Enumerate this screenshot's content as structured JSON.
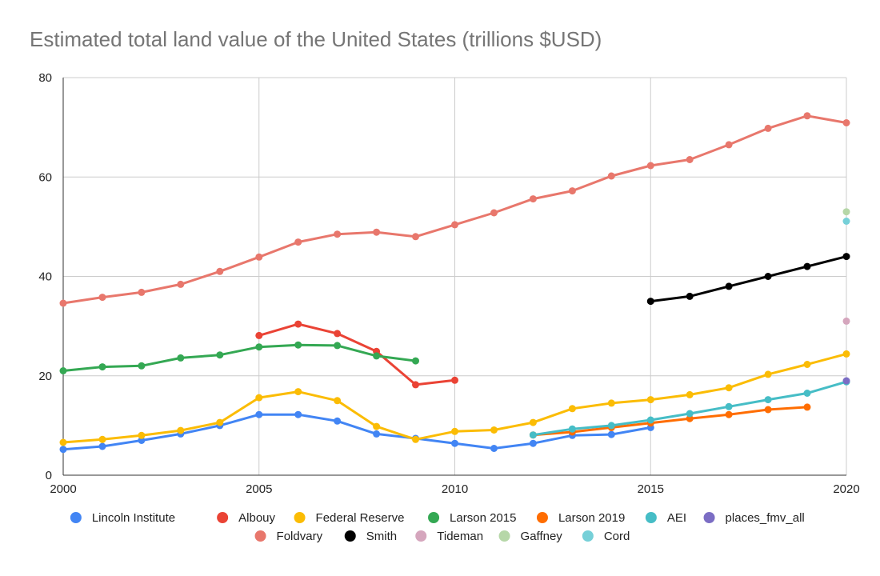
{
  "chart_data": {
    "type": "line",
    "title": "Estimated total land value of the United States (trillions $USD)",
    "xlabel": "",
    "ylabel": "",
    "xlim": [
      2000,
      2020
    ],
    "ylim": [
      0,
      80
    ],
    "x_ticks": [
      "2000",
      "2005",
      "2010",
      "2015",
      "2020"
    ],
    "y_ticks": [
      "0",
      "20",
      "40",
      "60",
      "80"
    ],
    "grid": true,
    "legend_position": "bottom",
    "series": [
      {
        "name": "Lincoln Institute",
        "color": "#4285f4",
        "line": true,
        "x": [
          2000,
          2001,
          2002,
          2003,
          2004,
          2005,
          2006,
          2007,
          2008,
          2009,
          2010,
          2011,
          2012,
          2013,
          2014,
          2015
        ],
        "y": [
          5.2,
          5.8,
          7.0,
          8.3,
          10.0,
          12.2,
          12.2,
          10.9,
          8.3,
          7.4,
          6.4,
          5.4,
          6.4,
          8.0,
          8.2,
          9.6
        ]
      },
      {
        "name": "Albouy",
        "color": "#ea4335",
        "line": true,
        "x": [
          2005,
          2006,
          2007,
          2008,
          2009,
          2010
        ],
        "y": [
          28.1,
          30.4,
          28.5,
          24.9,
          18.2,
          19.1
        ]
      },
      {
        "name": "Federal Reserve",
        "color": "#fbbc04",
        "line": true,
        "x": [
          2000,
          2001,
          2002,
          2003,
          2004,
          2005,
          2006,
          2007,
          2008,
          2009,
          2010,
          2011,
          2012,
          2013,
          2014,
          2015,
          2016,
          2017,
          2018,
          2019,
          2020
        ],
        "y": [
          6.6,
          7.2,
          8.0,
          9.0,
          10.6,
          15.6,
          16.8,
          15.0,
          9.8,
          7.2,
          8.8,
          9.1,
          10.6,
          13.4,
          14.5,
          15.2,
          16.2,
          17.6,
          20.3,
          22.3,
          24.4
        ]
      },
      {
        "name": "Larson 2015",
        "color": "#34a853",
        "line": true,
        "x": [
          2000,
          2001,
          2002,
          2003,
          2004,
          2005,
          2006,
          2007,
          2008,
          2009
        ],
        "y": [
          21.0,
          21.8,
          22.0,
          23.6,
          24.2,
          25.8,
          26.2,
          26.1,
          24.0,
          23.0
        ]
      },
      {
        "name": "Larson 2019",
        "color": "#ff6d01",
        "line": true,
        "x": [
          2012,
          2013,
          2014,
          2015,
          2016,
          2017,
          2018,
          2019
        ],
        "y": [
          8.1,
          8.7,
          9.6,
          10.5,
          11.4,
          12.2,
          13.2,
          13.7
        ]
      },
      {
        "name": "AEI",
        "color": "#46bdc6",
        "line": true,
        "x": [
          2012,
          2013,
          2014,
          2015,
          2016,
          2017,
          2018,
          2019,
          2020
        ],
        "y": [
          8.1,
          9.3,
          10.0,
          11.1,
          12.4,
          13.8,
          15.2,
          16.5,
          18.8
        ]
      },
      {
        "name": "places_fmv_all",
        "color": "#7b6dc4",
        "line": false,
        "x": [
          2020
        ],
        "y": [
          19.0
        ]
      },
      {
        "name": "Foldvary",
        "color": "#e8776c",
        "line": true,
        "x": [
          2000,
          2001,
          2002,
          2003,
          2004,
          2005,
          2006,
          2007,
          2008,
          2009,
          2010,
          2011,
          2012,
          2013,
          2014,
          2015,
          2016,
          2017,
          2018,
          2019,
          2020
        ],
        "y": [
          34.6,
          35.8,
          36.8,
          38.4,
          41.0,
          43.9,
          46.9,
          48.5,
          48.9,
          48.0,
          50.4,
          52.8,
          55.6,
          57.2,
          60.2,
          62.3,
          63.5,
          66.5,
          69.8,
          72.3,
          70.9
        ]
      },
      {
        "name": "Smith",
        "color": "#000000",
        "line": true,
        "x": [
          2015,
          2016,
          2017,
          2018,
          2019,
          2020
        ],
        "y": [
          35.0,
          36.0,
          38.0,
          40.0,
          42.0,
          44.0
        ]
      },
      {
        "name": "Tideman",
        "color": "#d5a6bd",
        "line": false,
        "x": [
          2020
        ],
        "y": [
          31.0
        ]
      },
      {
        "name": "Gaffney",
        "color": "#b6d7a8",
        "line": false,
        "x": [
          2020
        ],
        "y": [
          53.0
        ]
      },
      {
        "name": "Cord",
        "color": "#76d0d8",
        "line": false,
        "x": [
          2020
        ],
        "y": [
          51.1
        ]
      }
    ],
    "legend_rows": [
      [
        "Lincoln Institute",
        "Albouy",
        "Federal Reserve",
        "Larson 2015",
        "Larson 2019",
        "AEI",
        "places_fmv_all"
      ],
      [
        "Foldvary",
        "Smith",
        "Tideman",
        "Gaffney",
        "Cord"
      ]
    ]
  }
}
